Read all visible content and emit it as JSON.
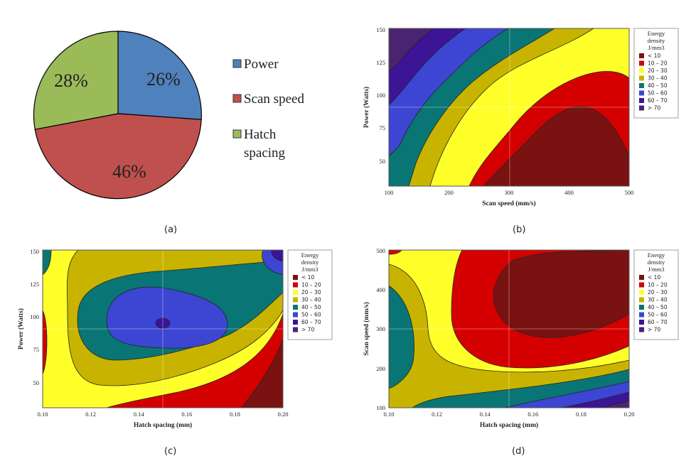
{
  "panel_labels": [
    "(a)",
    "(b)",
    "(c)",
    "(d)"
  ],
  "legend_title": [
    "Energy",
    "density",
    "J/mm3"
  ],
  "legend_items": [
    {
      "label": "< 10",
      "color": "#7a1212"
    },
    {
      "label": "10 – 20",
      "color": "#d40000"
    },
    {
      "label": "20 – 30",
      "color": "#ffff2a"
    },
    {
      "label": "30 – 40",
      "color": "#c8b400"
    },
    {
      "label": "40 – 50",
      "color": "#0a7575"
    },
    {
      "label": "50 – 60",
      "color": "#3c46d2"
    },
    {
      "label": "60 – 70",
      "color": "#3c1496"
    },
    {
      "label": "> 70",
      "color": "#4a2470"
    }
  ],
  "chart_data": [
    {
      "type": "pie",
      "labels": [
        "Power",
        "Scan speed",
        "Hatch spacing"
      ],
      "values": [
        26,
        46,
        28
      ],
      "value_labels": [
        "26%",
        "46%",
        "28%"
      ],
      "colors": [
        "#4f81bd",
        "#c0504d",
        "#9bbb59"
      ],
      "legend_position": "right"
    },
    {
      "type": "heatmap",
      "xlabel": "Scan speed (mm/s)",
      "ylabel": "Power (Watts)",
      "xlim": [
        100,
        500
      ],
      "ylim": [
        30,
        150
      ],
      "xticks": [
        "100",
        "200",
        "300",
        "400",
        "500"
      ],
      "yticks": [
        "50",
        "75",
        "100",
        "125",
        "150"
      ]
    },
    {
      "type": "heatmap",
      "xlabel": "Hatch spacing (mm)",
      "ylabel": "Power (Watts)",
      "xlim": [
        0.1,
        0.2
      ],
      "ylim": [
        30,
        150
      ],
      "xticks": [
        "0.10",
        "0.12",
        "0.14",
        "0.16",
        "0.18",
        "0.20"
      ],
      "yticks": [
        "50",
        "75",
        "100",
        "125",
        "150"
      ]
    },
    {
      "type": "heatmap",
      "xlabel": "Hatch spacing (mm)",
      "ylabel": "Scan speed (mm/s)",
      "xlim": [
        0.1,
        0.2
      ],
      "ylim": [
        100,
        500
      ],
      "xticks": [
        "0.10",
        "0.12",
        "0.14",
        "0.16",
        "0.18",
        "0.20"
      ],
      "yticks": [
        "100",
        "200",
        "300",
        "400",
        "500"
      ]
    }
  ]
}
